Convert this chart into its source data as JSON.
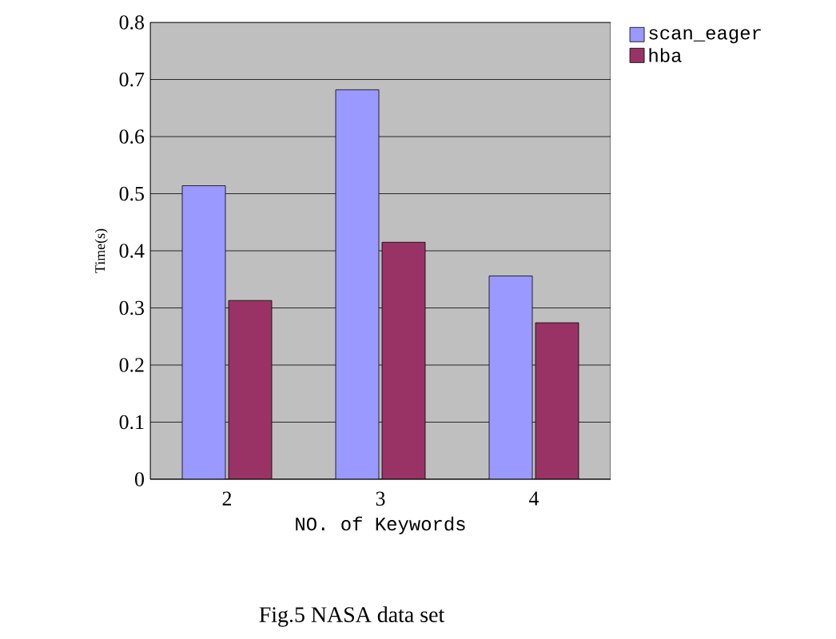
{
  "chart_data": {
    "type": "bar",
    "categories": [
      "2",
      "3",
      "4"
    ],
    "series": [
      {
        "name": "scan_eager",
        "color": "#9999ff",
        "values": [
          0.514,
          0.682,
          0.356
        ]
      },
      {
        "name": "hba",
        "color": "#993366",
        "values": [
          0.313,
          0.415,
          0.274
        ]
      }
    ],
    "xlabel": "NO. of Keywords",
    "ylabel": "Time(s)",
    "ylim": [
      0,
      0.8
    ],
    "yticks": [
      0,
      0.1,
      0.2,
      0.3,
      0.4,
      0.5,
      0.6,
      0.7,
      0.8
    ],
    "grid": "y",
    "legend": "top right",
    "annotations": [
      "Fig.5 NASA data set"
    ]
  }
}
